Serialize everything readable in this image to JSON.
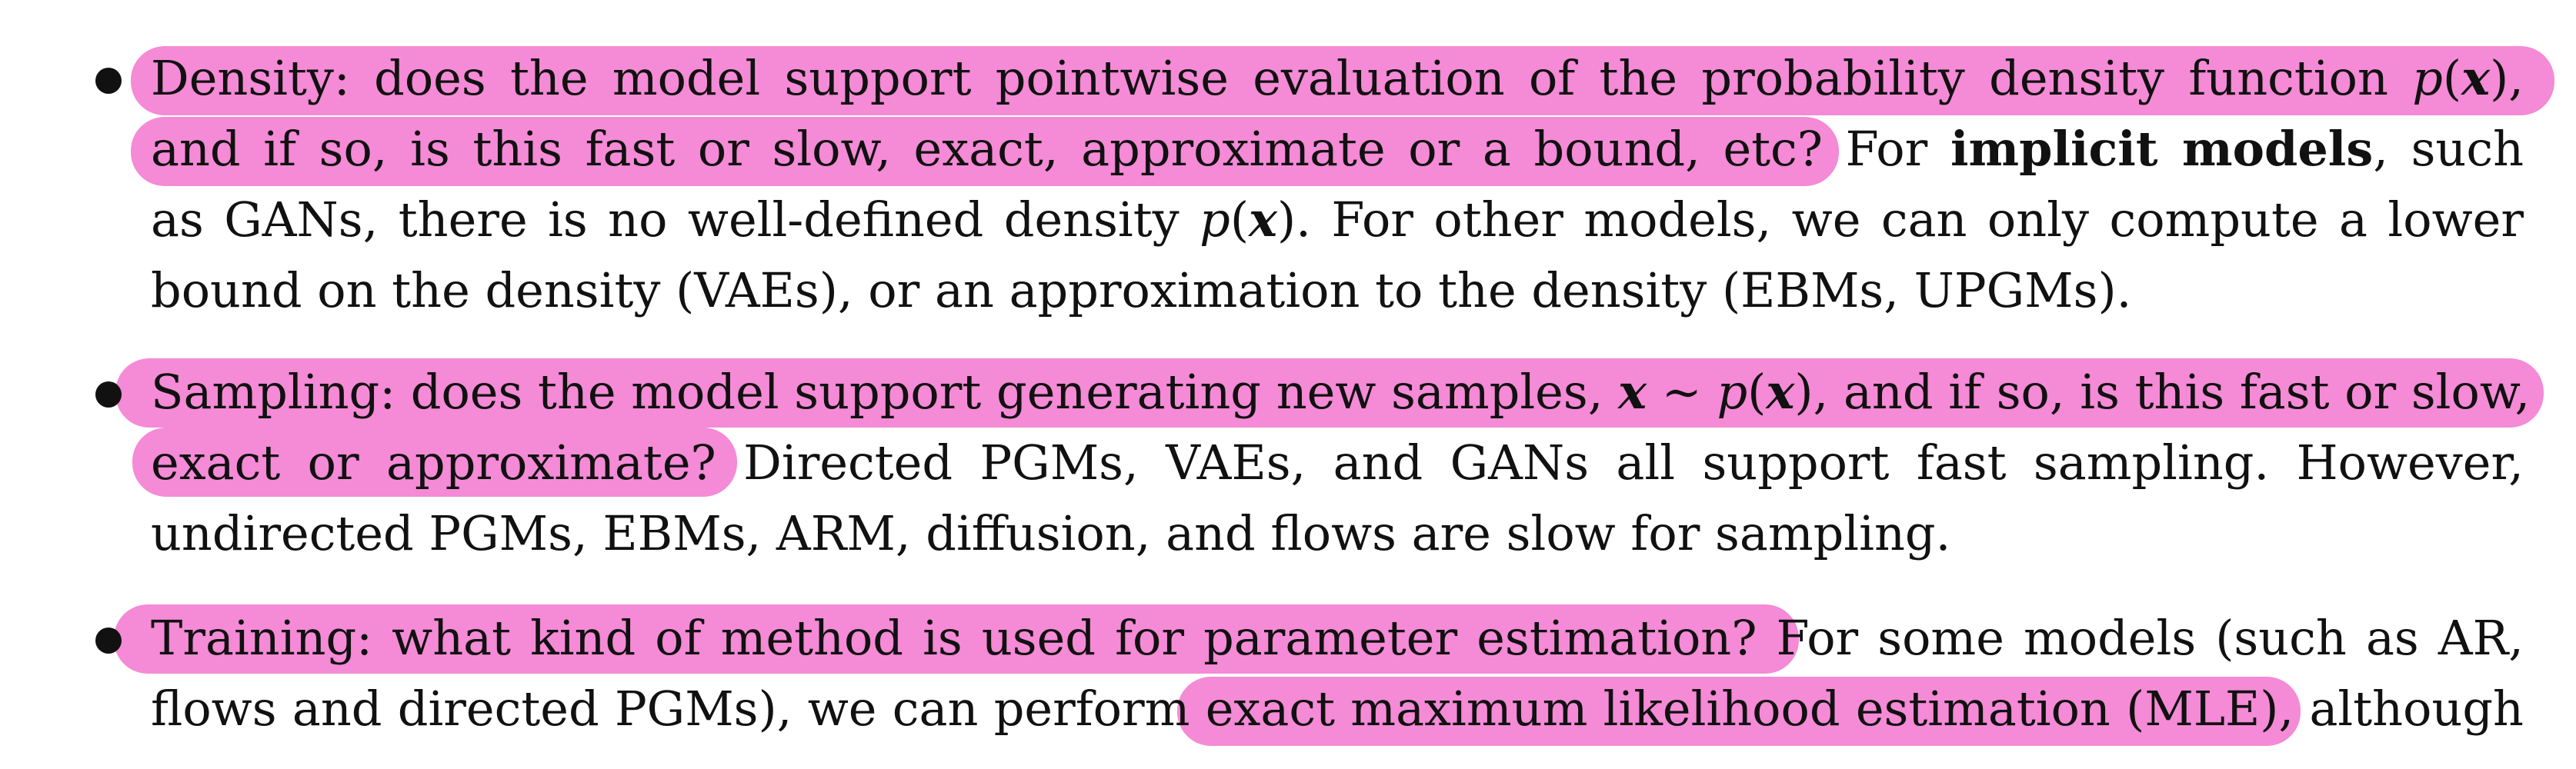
{
  "doc": {
    "item1": {
      "l1_pre": "Density: does the model support pointwise evaluation of the probability density function ",
      "l1_p": "p",
      "l1_lp": "(",
      "l1_x": "x",
      "l1_rp": "),",
      "l2_a": "and if so, is this fast or slow, exact, approximate or a bound, etc?",
      "l2_b": " For ",
      "l2_bold": "implicit models",
      "l2_c": ", such",
      "l3_a": "as GANs, there is no well-defined density ",
      "l3_p": "p",
      "l3_lp": "(",
      "l3_x": "x",
      "l3_rp": ").",
      "l3_b": " For other models, we can only compute a lower",
      "l4": "bound on the density (VAEs), or an approximation to the density (EBMs, UPGMs)."
    },
    "item2": {
      "l1_pre": "Sampling: does the model support generating new samples, ",
      "l1_x1": "x",
      "l1_sim": " ∼ ",
      "l1_p": "p",
      "l1_lp": "(",
      "l1_x2": "x",
      "l1_rp": ")",
      "l1_post": ", and if so, is this fast or slow,",
      "l2_a": "exact or approximate?",
      "l2_b": " Directed PGMs, VAEs, and GANs all support fast sampling. However,",
      "l3": "undirected PGMs, EBMs, ARM, diffusion, and flows are slow for sampling."
    },
    "item3": {
      "l1_a": "Training: what kind of method is used for parameter estimation?",
      "l1_b": " For some models (such as AR,",
      "l2_a": "flows and directed PGMs), we can perform ",
      "l2_b": "exact maximum likelihood estimation (MLE)",
      "l2_c": ", although"
    }
  },
  "colors": {
    "highlight": "#f58ad6",
    "text": "#111111",
    "background": "#ffffff"
  }
}
